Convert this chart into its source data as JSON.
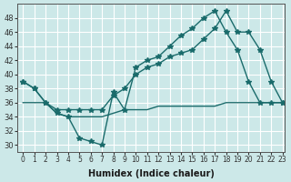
{
  "xlabel": "Humidex (Indice chaleur)",
  "bg_color": "#cce8e8",
  "line_color": "#1a6b6b",
  "grid_color": "#ffffff",
  "xlim": [
    -0.5,
    23.2
  ],
  "ylim": [
    29,
    50
  ],
  "yticks": [
    30,
    32,
    34,
    36,
    38,
    40,
    42,
    44,
    46,
    48
  ],
  "xticks": [
    0,
    1,
    2,
    3,
    4,
    5,
    6,
    7,
    8,
    9,
    10,
    11,
    12,
    13,
    14,
    15,
    16,
    17,
    18,
    19,
    20,
    21,
    22,
    23
  ],
  "line1_x": [
    0,
    1,
    2,
    3,
    4,
    5,
    6,
    7,
    8,
    9,
    10,
    11,
    12,
    13,
    14,
    15,
    16,
    17,
    18,
    19,
    20,
    21,
    22,
    23
  ],
  "line1_y": [
    39,
    38,
    36,
    34.5,
    34,
    31,
    30.5,
    30,
    37.5,
    35,
    41,
    42,
    42.5,
    44,
    45.5,
    46.5,
    48,
    49,
    46,
    43.5,
    39,
    36,
    36,
    36
  ],
  "line2_x": [
    0,
    1,
    2,
    3,
    4,
    5,
    6,
    7,
    8,
    9,
    10,
    11,
    12,
    13,
    14,
    15,
    16,
    17,
    18,
    19,
    20,
    21,
    22,
    23
  ],
  "line2_y": [
    39,
    38,
    36,
    35,
    35,
    35,
    35,
    35,
    37,
    38,
    40,
    41,
    41.5,
    42.5,
    43,
    43.5,
    45,
    46.5,
    49,
    46,
    46,
    43.5,
    39,
    36
  ],
  "line3_x": [
    0,
    1,
    2,
    3,
    4,
    5,
    6,
    7,
    8,
    9,
    10,
    11,
    12,
    13,
    14,
    15,
    16,
    17,
    18,
    19,
    20,
    21,
    22,
    23
  ],
  "line3_y": [
    36,
    36,
    36,
    34.5,
    34,
    34,
    34,
    34,
    34.5,
    35,
    35,
    35,
    35.5,
    35.5,
    35.5,
    35.5,
    35.5,
    35.5,
    36,
    36,
    36,
    36,
    36,
    36
  ]
}
